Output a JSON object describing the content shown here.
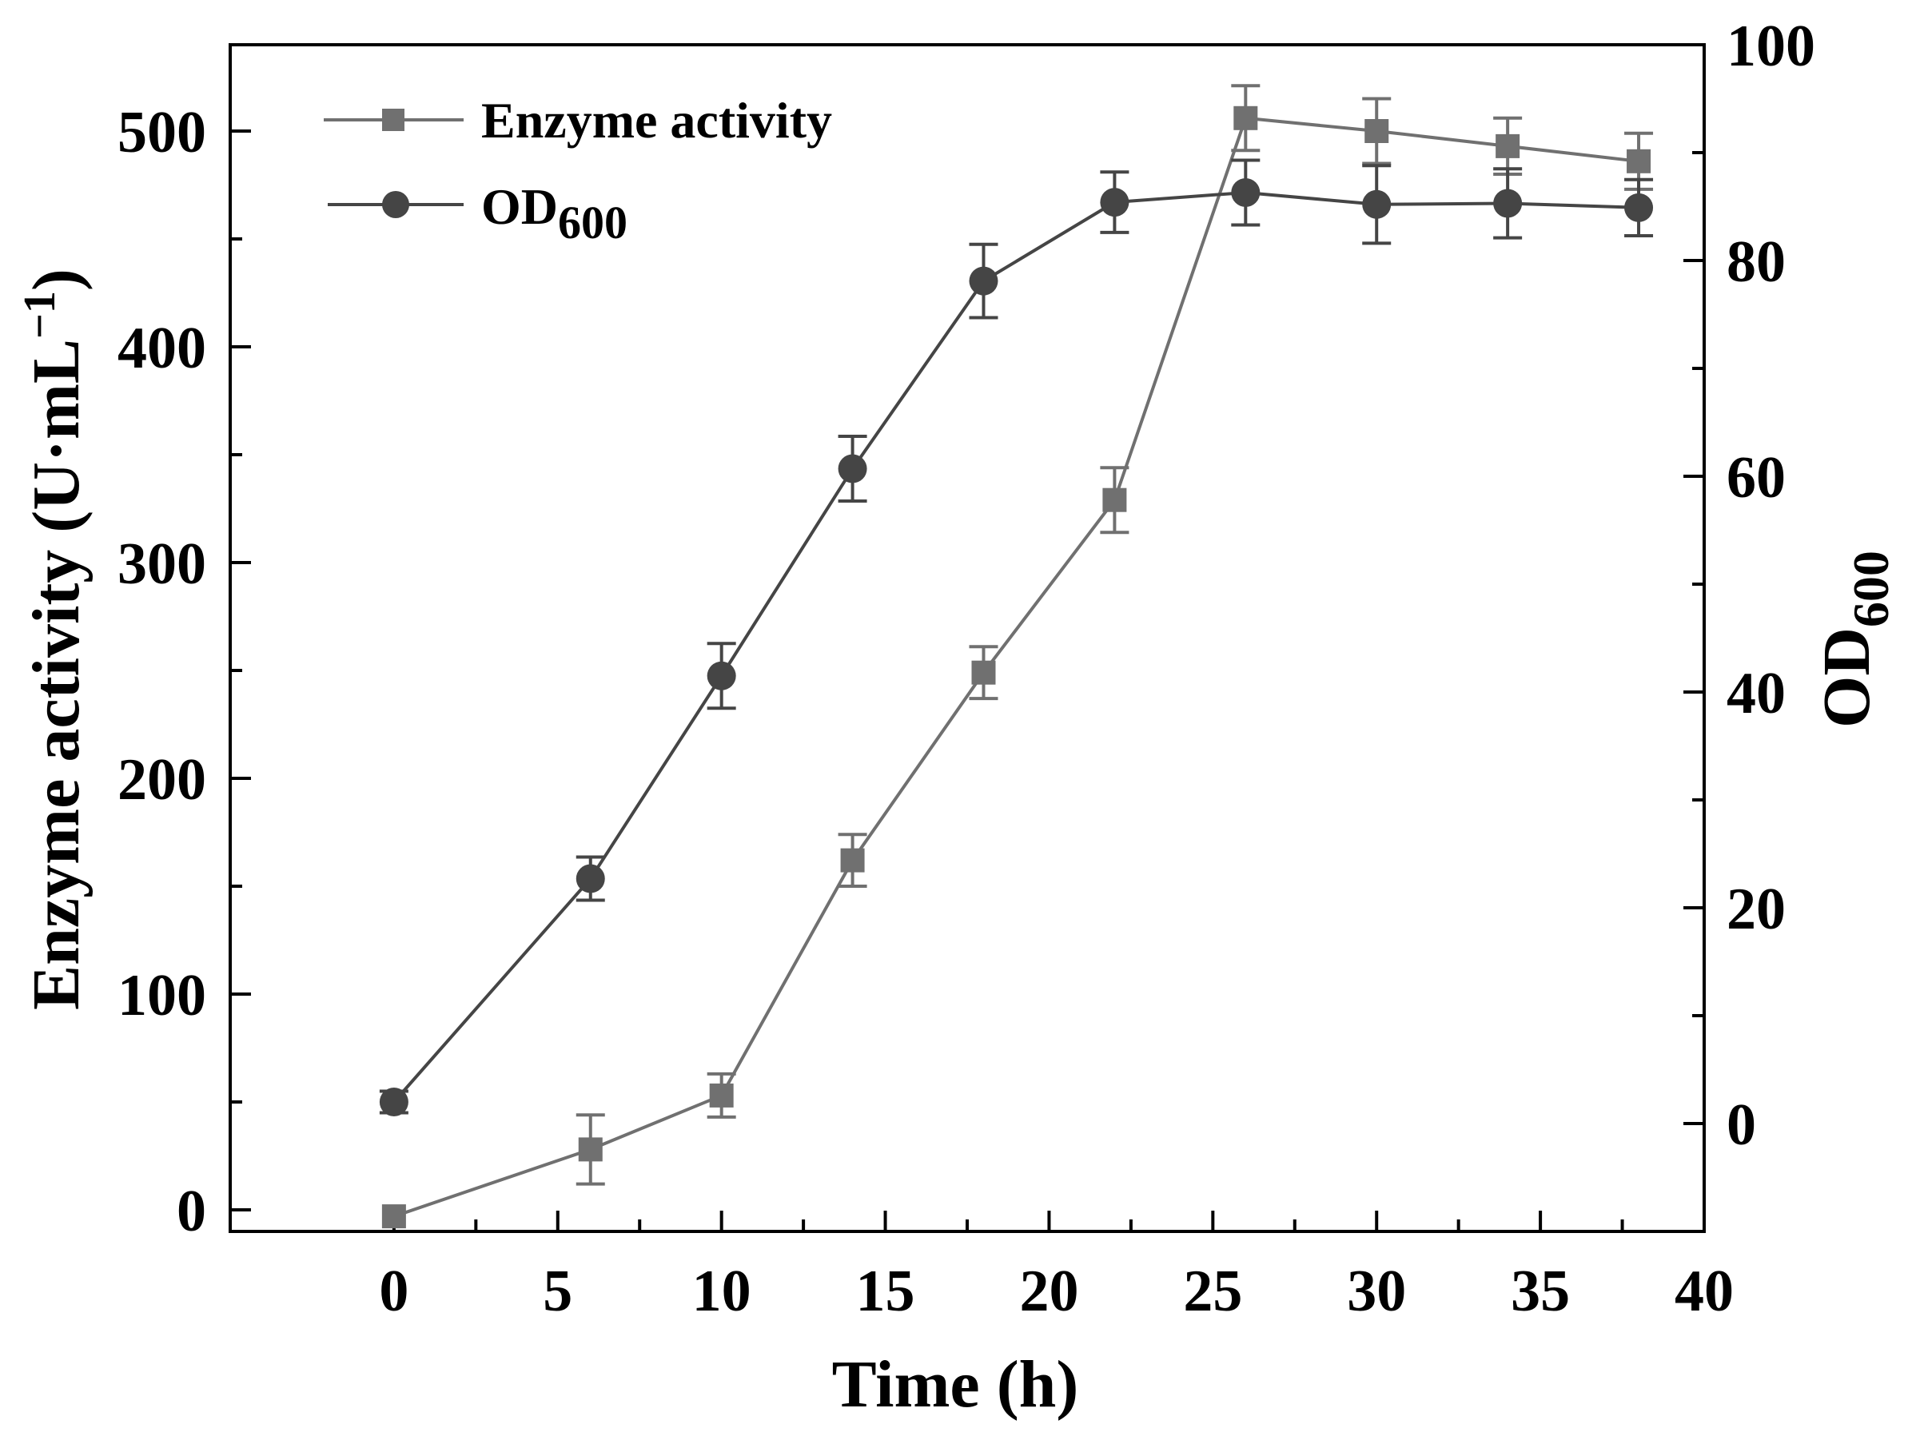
{
  "chart_data": {
    "type": "line",
    "title": "",
    "xlabel": "Time (h)",
    "ylabel": {
      "main": "Enzyme activity (U·mL",
      "sup": "−1",
      "close": ")"
    },
    "y2label": {
      "main": "OD",
      "sub": "600"
    },
    "xlim": [
      -5,
      40
    ],
    "ylim": [
      -10,
      540
    ],
    "y2lim": [
      -10,
      100
    ],
    "xticks": [
      0,
      5,
      10,
      15,
      20,
      25,
      30,
      35,
      40
    ],
    "yticks": [
      0,
      100,
      200,
      300,
      400,
      500
    ],
    "y2ticks": [
      0,
      20,
      40,
      60,
      80,
      100
    ],
    "grid": false,
    "legend_position": "top-left",
    "series": [
      {
        "name": "Enzyme activity",
        "axis": "left",
        "marker": "square",
        "color": "#707070",
        "x": [
          0,
          6,
          10,
          14,
          18,
          22,
          26,
          30,
          34,
          38
        ],
        "values": [
          -3,
          28,
          53,
          162,
          249,
          329,
          506,
          500,
          493,
          486
        ],
        "errors": [
          0,
          16,
          10,
          12,
          12,
          15,
          15,
          15,
          13,
          13
        ]
      },
      {
        "name": "OD",
        "name_sub": "600",
        "axis": "right",
        "marker": "circle",
        "color": "#454545",
        "x": [
          0,
          6,
          10,
          14,
          18,
          22,
          26,
          30,
          34,
          38
        ],
        "values": [
          2,
          22.7,
          41.5,
          60.7,
          78.1,
          85.4,
          86.3,
          85.2,
          85.3,
          84.9
        ],
        "errors": [
          1,
          2,
          3,
          3,
          3.4,
          2.8,
          3,
          3.6,
          3.2,
          2.6
        ]
      }
    ]
  }
}
